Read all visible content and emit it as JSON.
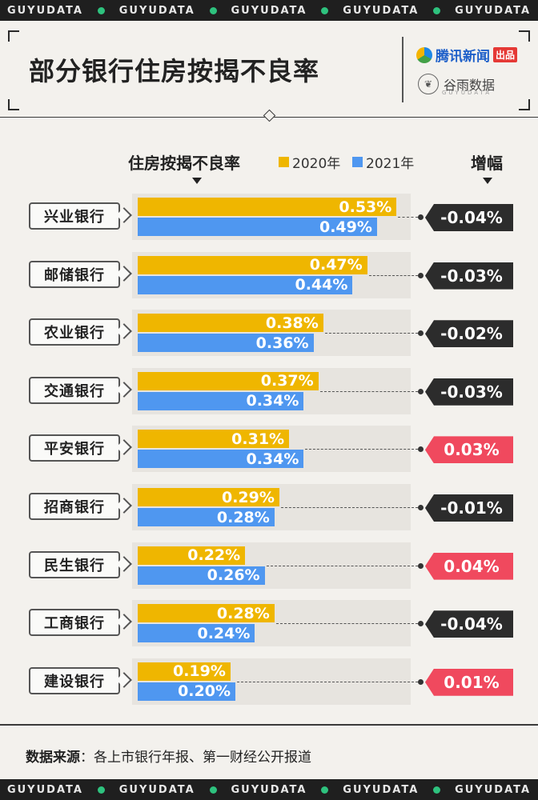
{
  "banner": {
    "word": "GUYUDATA"
  },
  "header": {
    "title": "部分银行住房按揭不良率",
    "logo_primary": "腾讯新闻",
    "logo_badge": "出品",
    "logo_secondary": "谷雨数据",
    "logo_secondary_sub": "GUYUDATA"
  },
  "legend": {
    "metric_label": "住房按揭不良率",
    "series": [
      {
        "name": "2020年",
        "color": "#efb600"
      },
      {
        "name": "2021年",
        "color": "#4f97f0"
      }
    ],
    "change_label": "增幅"
  },
  "chart_data": {
    "type": "bar",
    "title": "部分银行住房按揭不良率",
    "categories": [
      "兴业银行",
      "邮储银行",
      "农业银行",
      "交通银行",
      "平安银行",
      "招商银行",
      "民生银行",
      "工商银行",
      "建设银行"
    ],
    "series": [
      {
        "name": "2020年",
        "values": [
          0.53,
          0.47,
          0.38,
          0.37,
          0.31,
          0.29,
          0.22,
          0.28,
          0.19
        ],
        "labels": [
          "0.53%",
          "0.47%",
          "0.38%",
          "0.37%",
          "0.31%",
          "0.29%",
          "0.22%",
          "0.28%",
          "0.19%"
        ]
      },
      {
        "name": "2021年",
        "values": [
          0.49,
          0.44,
          0.36,
          0.34,
          0.34,
          0.28,
          0.26,
          0.24,
          0.2
        ],
        "labels": [
          "0.49%",
          "0.44%",
          "0.36%",
          "0.34%",
          "0.34%",
          "0.28%",
          "0.26%",
          "0.24%",
          "0.20%"
        ]
      }
    ],
    "change": {
      "name": "增幅",
      "values": [
        -0.04,
        -0.03,
        -0.02,
        -0.03,
        0.03,
        -0.01,
        0.04,
        -0.04,
        0.01
      ],
      "labels": [
        "-0.04%",
        "-0.03%",
        "-0.02%",
        "-0.03%",
        "0.03%",
        "-0.01%",
        "0.04%",
        "-0.04%",
        "0.01%"
      ]
    },
    "unit": "%",
    "colors": {
      "decrease": "#2c2c2c",
      "increase": "#f0495e"
    }
  },
  "footer": {
    "label": "数据来源",
    "text": "：各上市银行年报、第一财经公开报道"
  }
}
